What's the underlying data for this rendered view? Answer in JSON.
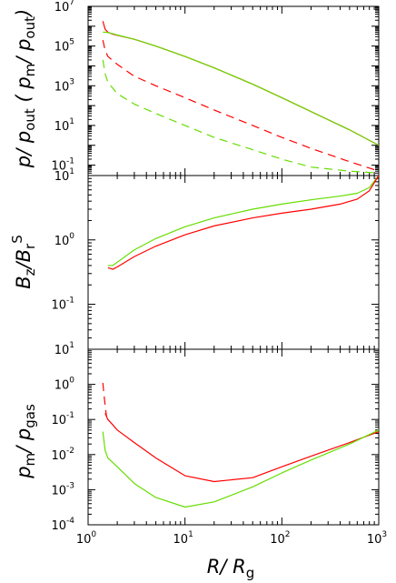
{
  "chart_data": [
    {
      "type": "line",
      "panel": "top",
      "ylabel": "p/ p_out ( p_m/ p_out)",
      "ylabel_parts": {
        "a": "p/ p",
        "a_sub": "out",
        "b": " ( p",
        "b_sub": "m",
        "c": "/ p",
        "c_sub": "out",
        "d": ")"
      },
      "yscale": "log",
      "xscale": "log",
      "xlim": [
        1,
        1000
      ],
      "ylim": [
        0.03,
        10000000.0
      ],
      "yticks": [
        {
          "base": "10",
          "exp": "-1",
          "value": 0.1
        },
        {
          "base": "10",
          "exp": "1",
          "value": 10
        },
        {
          "base": "10",
          "exp": "3",
          "value": 1000
        },
        {
          "base": "10",
          "exp": "5",
          "value": 100000
        },
        {
          "base": "10",
          "exp": "7",
          "value": 10000000
        }
      ],
      "series": [
        {
          "color": "#ff0000",
          "dash": "solid",
          "x": [
            1.42,
            1.5,
            1.6,
            1.8,
            2,
            3,
            5,
            10,
            20,
            50,
            100,
            200,
            500,
            1000
          ],
          "y": [
            1800000.0,
            700000.0,
            500000.0,
            400000.0,
            350000.0,
            220000.0,
            100000.0,
            30000.0,
            8000.0,
            1200.0,
            250,
            50,
            6,
            1
          ]
        },
        {
          "color": "#66dd00",
          "dash": "solid",
          "x": [
            1.42,
            1.5,
            1.6,
            1.8,
            2,
            3,
            5,
            10,
            20,
            50,
            100,
            200,
            500,
            1000
          ],
          "y": [
            500000.0,
            500000.0,
            480000.0,
            420000.0,
            360000.0,
            220000.0,
            100000.0,
            30000.0,
            8000.0,
            1200.0,
            250,
            50,
            6,
            1
          ]
        },
        {
          "color": "#ff0000",
          "dash": "dashed",
          "x": [
            1.42,
            1.5,
            1.6,
            2,
            3,
            5,
            10,
            20,
            50,
            100,
            200,
            500,
            1000
          ],
          "y": [
            200000.0,
            60000.0,
            30000.0,
            12000.0,
            3000.0,
            1000.0,
            250,
            60,
            10,
            2.5,
            0.7,
            0.15,
            0.05
          ]
        },
        {
          "color": "#66dd00",
          "dash": "dashed",
          "x": [
            1.42,
            1.5,
            1.6,
            2,
            3,
            5,
            10,
            20,
            50,
            100,
            200,
            500,
            1000
          ],
          "y": [
            20000.0,
            4000.0,
            1500.0,
            400,
            120,
            40,
            10,
            2.5,
            0.6,
            0.2,
            0.08,
            0.05,
            0.04
          ]
        }
      ]
    },
    {
      "type": "line",
      "panel": "middle",
      "ylabel": "B_z/B_r^S",
      "ylabel_parts": {
        "a": "B",
        "a_sub": "z",
        "b": "/B",
        "b_sub": "r",
        "b_sup": "S"
      },
      "yscale": "log",
      "xscale": "log",
      "xlim": [
        1,
        1000
      ],
      "ylim": [
        0.02,
        10
      ],
      "yticks": [
        {
          "base": "10",
          "exp": "-1",
          "value": 0.1
        },
        {
          "base": "10",
          "exp": "0",
          "value": 1
        },
        {
          "base": "10",
          "exp": "1",
          "value": 10
        }
      ],
      "series": [
        {
          "color": "#66dd00",
          "dash": "solid",
          "x": [
            1.6,
            1.8,
            2,
            3,
            5,
            10,
            20,
            50,
            100,
            200,
            400,
            600,
            800,
            1000
          ],
          "y": [
            0.4,
            0.4,
            0.45,
            0.7,
            1.05,
            1.6,
            2.2,
            3.0,
            3.6,
            4.2,
            4.8,
            5.3,
            6.5,
            10
          ]
        },
        {
          "color": "#ff0000",
          "dash": "solid",
          "x": [
            1.6,
            1.8,
            2,
            3,
            5,
            10,
            20,
            50,
            100,
            200,
            400,
            600,
            800,
            1000
          ],
          "y": [
            0.37,
            0.35,
            0.38,
            0.55,
            0.8,
            1.2,
            1.65,
            2.2,
            2.6,
            3.0,
            3.6,
            4.3,
            5.8,
            10
          ]
        }
      ]
    },
    {
      "type": "line",
      "panel": "bottom",
      "ylabel": "p_m/ p_gas",
      "ylabel_parts": {
        "a": "p",
        "a_sub": "m",
        "b": "/ p",
        "b_sub": "gas"
      },
      "xlabel": "R/ R_g",
      "xlabel_parts": {
        "a": "R",
        "b": "/ R",
        "b_sub": "g"
      },
      "yscale": "log",
      "xscale": "log",
      "xlim": [
        1,
        1000
      ],
      "ylim": [
        0.0001,
        10
      ],
      "yticks": [
        {
          "base": "10",
          "exp": "-4",
          "value": 0.0001
        },
        {
          "base": "10",
          "exp": "-3",
          "value": 0.001
        },
        {
          "base": "10",
          "exp": "-2",
          "value": 0.01
        },
        {
          "base": "10",
          "exp": "-1",
          "value": 0.1
        },
        {
          "base": "10",
          "exp": "0",
          "value": 1
        },
        {
          "base": "10",
          "exp": "1",
          "value": 10
        }
      ],
      "xticks": [
        {
          "base": "10",
          "exp": "0",
          "value": 1
        },
        {
          "base": "10",
          "exp": "1",
          "value": 10
        },
        {
          "base": "10",
          "exp": "2",
          "value": 100
        },
        {
          "base": "10",
          "exp": "3",
          "value": 1000
        }
      ],
      "series": [
        {
          "color": "#ff0000",
          "dash": "dashed",
          "x": [
            1.42,
            1.45,
            1.5,
            1.55
          ],
          "y": [
            1.1,
            0.6,
            0.25,
            0.12
          ]
        },
        {
          "color": "#ff0000",
          "dash": "solid",
          "x": [
            1.5,
            1.6,
            1.8,
            2,
            3,
            5,
            10,
            20,
            50,
            100,
            200,
            500,
            1000
          ],
          "y": [
            0.15,
            0.1,
            0.07,
            0.05,
            0.022,
            0.008,
            0.0025,
            0.0017,
            0.0022,
            0.0045,
            0.009,
            0.022,
            0.045
          ]
        },
        {
          "color": "#66dd00",
          "dash": "solid",
          "x": [
            1.42,
            1.5,
            1.6,
            2,
            3,
            5,
            10,
            20,
            50,
            100,
            200,
            500,
            1000
          ],
          "y": [
            0.045,
            0.013,
            0.008,
            0.0045,
            0.0015,
            0.0006,
            0.00032,
            0.00045,
            0.0012,
            0.003,
            0.007,
            0.02,
            0.05
          ]
        }
      ]
    }
  ]
}
